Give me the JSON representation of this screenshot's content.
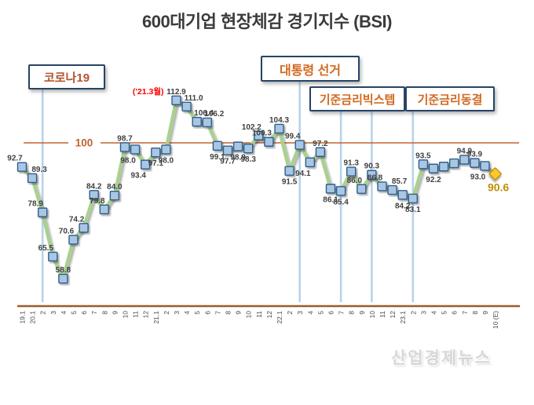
{
  "title": "600대기업 현장체감 경기지수 (BSI)",
  "watermark": "산업경제뉴스",
  "chart_data": {
    "type": "line",
    "title": "600대기업 현장체감 경기지수 (BSI)",
    "series_name": "BSI",
    "x": [
      "19.1",
      "20.1",
      "2",
      "3",
      "4",
      "5",
      "6",
      "7",
      "8",
      "9",
      "10",
      "11",
      "12",
      "21.1",
      "2",
      "3",
      "4",
      "5",
      "6",
      "7",
      "8",
      "9",
      "10",
      "11",
      "12",
      "22.1",
      "2",
      "3",
      "4",
      "5",
      "6",
      "7",
      "8",
      "9",
      "10",
      "11",
      "12",
      "23.1",
      "2",
      "3",
      "4",
      "5",
      "6",
      "7",
      "8",
      "9",
      "10 (E)"
    ],
    "values": [
      92.7,
      89.3,
      78.9,
      65.5,
      58.8,
      70.6,
      74.2,
      84.2,
      79.8,
      84.0,
      98.7,
      98.0,
      93.4,
      97.1,
      98.0,
      112.9,
      111.0,
      106.4,
      106.2,
      99.1,
      97.7,
      98.9,
      98.3,
      102.2,
      100.3,
      104.3,
      91.5,
      99.4,
      94.1,
      97.2,
      86.1,
      85.4,
      91.3,
      86.0,
      90.3,
      86.8,
      85.7,
      84.2,
      83.1,
      93.5,
      92.2,
      92.8,
      93.8,
      94.9,
      93.9,
      93.0,
      90.6
    ],
    "point_labels": [
      "92.7",
      "89.3",
      "78.9",
      "65.5",
      "58.8",
      "70.6",
      "74.2",
      "84.2",
      "79.8",
      "84.0",
      "98.7",
      "98.0",
      "93.4",
      "97.1",
      "98.0",
      "112.9",
      "111.0",
      "106.4",
      "106.2",
      "99.1",
      "97.7",
      "98.9",
      "98.3",
      "102.2",
      "100.3",
      "104.3",
      "91.5",
      "99.4",
      "94.1",
      "97.2",
      "86.1",
      "85.4",
      "91.3",
      "86.0",
      "90.3",
      "86.8",
      "85.7",
      "84.2",
      "83.1",
      "93.5",
      "92.2",
      null,
      null,
      "94.9",
      "93.9",
      "93.0",
      "90.6"
    ],
    "label_pos": [
      "al",
      "ar",
      "al",
      "al",
      "a",
      "al",
      "al",
      "a",
      "al",
      "a",
      "a",
      "bl",
      "bl",
      "b",
      "b",
      "a",
      "ar",
      "ar",
      "ar",
      "b",
      "b",
      "b",
      "b",
      "al",
      "al",
      "a",
      "b",
      "al",
      "bl",
      "a",
      "b",
      "b",
      "a",
      "al",
      "a",
      "al",
      "ar",
      "b",
      "b",
      "a",
      "b",
      null,
      null,
      "a",
      "a",
      "bl",
      "b"
    ],
    "peak_note": {
      "text": "('21.3월)",
      "index": 15
    },
    "final_point": {
      "index": 46,
      "label": "90.6",
      "is_estimate": true
    },
    "reference_line": {
      "value": 100,
      "label": "100"
    },
    "ylim": [
      55,
      115
    ],
    "grid": false,
    "legend": "none",
    "events": [
      {
        "label": "코로나19",
        "line_indices": [
          2
        ]
      },
      {
        "label": "대통령 선거",
        "line_indices": [
          27
        ]
      },
      {
        "label": "기준금리빅스텝",
        "line_indices": [
          31,
          34
        ]
      },
      {
        "label": "기준금리동결",
        "line_indices": [
          38
        ]
      }
    ],
    "colors": {
      "line": "#a9d18e",
      "marker_fill": "#a9c6e4",
      "marker_border": "#2e5f8a",
      "final_marker_fill": "#ffc82e",
      "final_marker_border": "#bf8f00",
      "final_label": "#bf8f00",
      "reference_line": "#c0632c",
      "axis_line": "#9c5b2b",
      "event_line": "#b9d3ea",
      "data_label": "#3f3f3f",
      "peak_note": "#ff0000",
      "tick_label": "#4a4a4a"
    }
  }
}
